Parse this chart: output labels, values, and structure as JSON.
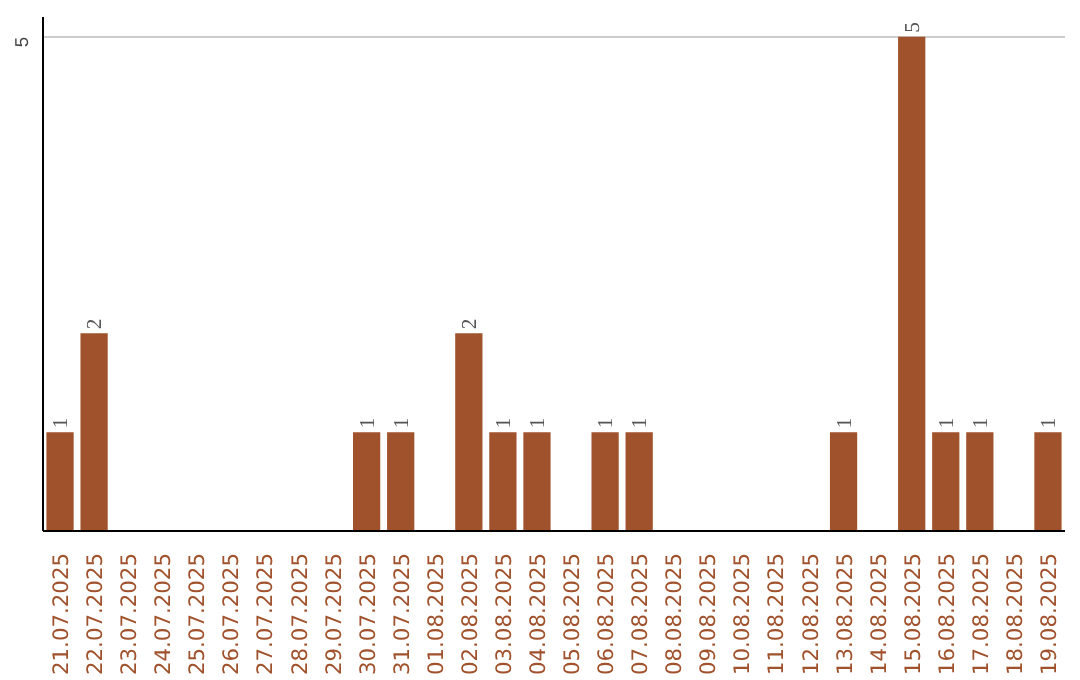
{
  "chart_data": {
    "type": "bar",
    "categories": [
      "21.07.2025",
      "22.07.2025",
      "23.07.2025",
      "24.07.2025",
      "25.07.2025",
      "26.07.2025",
      "27.07.2025",
      "28.07.2025",
      "29.07.2025",
      "30.07.2025",
      "31.07.2025",
      "01.08.2025",
      "02.08.2025",
      "03.08.2025",
      "04.08.2025",
      "05.08.2025",
      "06.08.2025",
      "07.08.2025",
      "08.08.2025",
      "09.08.2025",
      "10.08.2025",
      "11.08.2025",
      "12.08.2025",
      "13.08.2025",
      "14.08.2025",
      "15.08.2025",
      "16.08.2025",
      "17.08.2025",
      "18.08.2025",
      "19.08.2025"
    ],
    "values": [
      1,
      2,
      null,
      null,
      null,
      null,
      null,
      null,
      null,
      1,
      1,
      null,
      2,
      1,
      1,
      null,
      1,
      1,
      null,
      null,
      null,
      null,
      null,
      1,
      null,
      5,
      1,
      1,
      null,
      1
    ],
    "color": "#a0522d",
    "ylim": [
      0,
      5.2
    ],
    "yticks": [
      5
    ],
    "grid": "y",
    "data_labels": true
  }
}
